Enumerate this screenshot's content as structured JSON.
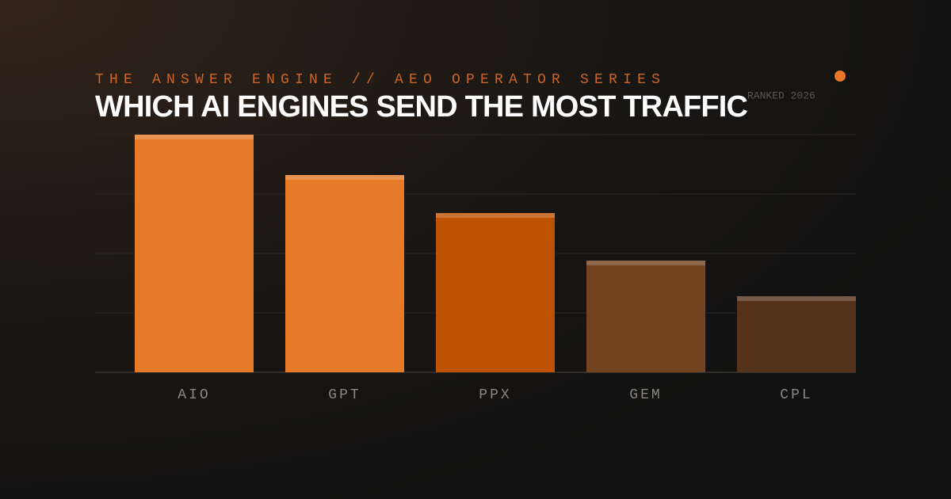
{
  "chart_data": {
    "type": "bar",
    "eyebrow": "THE ANSWER ENGINE // AEO OPERATOR SERIES",
    "title": "WHICH AI ENGINES SEND THE MOST TRAFFIC",
    "badge": "RANKED 2026",
    "categories": [
      "AIO",
      "GPT",
      "PPX",
      "GEM",
      "CPL"
    ],
    "values": [
      100,
      83,
      67,
      47,
      32
    ],
    "colors": [
      "#e67a27",
      "#e67a27",
      "#bf5200",
      "#74431f",
      "#55331a"
    ],
    "ylim": [
      0,
      100
    ],
    "yticks": [
      0,
      25,
      50,
      75,
      100
    ],
    "grid": true
  }
}
